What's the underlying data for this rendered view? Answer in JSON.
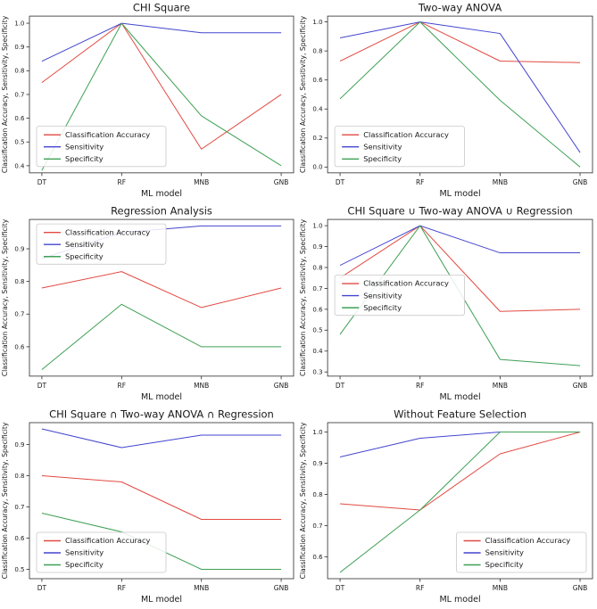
{
  "page": {
    "background": "#ffffff"
  },
  "shared": {
    "xlabel": "ML model",
    "ylabel": "Classification Accuracy, Sensitivity, Specificity",
    "categories": [
      "DT",
      "RF",
      "MNB",
      "GNB"
    ],
    "legend_labels": [
      "Classification Accuracy",
      "Sensitivity",
      "Specificity"
    ],
    "colors": {
      "accuracy": "#e24a42",
      "sensitivity": "#4345cf",
      "specificity": "#3fa055",
      "axis": "#2b2b2b",
      "legend_border": "#c9c9c9"
    }
  },
  "chart_data": [
    {
      "type": "line",
      "title": "CHI Square",
      "xlabel": "ML model",
      "ylabel": "Classification Accuracy, Sensitivity, Specificity",
      "categories": [
        "DT",
        "RF",
        "MNB",
        "GNB"
      ],
      "ylim": [
        0.37,
        1.03
      ],
      "yticks": [
        0.4,
        0.5,
        0.6,
        0.7,
        0.8,
        0.9,
        1.0
      ],
      "legend_position": "lower-left",
      "series": [
        {
          "name": "Classification Accuracy",
          "color": "#e24a42",
          "values": [
            0.75,
            1.0,
            0.47,
            0.7
          ]
        },
        {
          "name": "Sensitivity",
          "color": "#4345cf",
          "values": [
            0.84,
            1.0,
            0.96,
            0.96
          ]
        },
        {
          "name": "Specificity",
          "color": "#3fa055",
          "values": [
            0.38,
            1.0,
            0.61,
            0.4
          ]
        }
      ]
    },
    {
      "type": "line",
      "title": "Two-way ANOVA",
      "xlabel": "ML model",
      "ylabel": "Classification Accuracy, Sensitivity, Specificity",
      "categories": [
        "DT",
        "RF",
        "MNB",
        "GNB"
      ],
      "ylim": [
        -0.04,
        1.04
      ],
      "yticks": [
        0.0,
        0.2,
        0.4,
        0.6,
        0.8,
        1.0
      ],
      "legend_position": "lower-left",
      "series": [
        {
          "name": "Classification Accuracy",
          "color": "#e24a42",
          "values": [
            0.73,
            1.0,
            0.73,
            0.72
          ]
        },
        {
          "name": "Sensitivity",
          "color": "#4345cf",
          "values": [
            0.89,
            1.0,
            0.92,
            0.1
          ]
        },
        {
          "name": "Specificity",
          "color": "#3fa055",
          "values": [
            0.47,
            1.0,
            0.46,
            0.0
          ]
        }
      ]
    },
    {
      "type": "line",
      "title": "Regression Analysis",
      "xlabel": "ML model",
      "ylabel": "Classification Accuracy, Sensitivity, Specificity",
      "categories": [
        "DT",
        "RF",
        "MNB",
        "GNB"
      ],
      "ylim": [
        0.51,
        0.99
      ],
      "yticks": [
        0.6,
        0.7,
        0.8,
        0.9
      ],
      "legend_position": "upper-left",
      "series": [
        {
          "name": "Classification Accuracy",
          "color": "#e24a42",
          "values": [
            0.78,
            0.83,
            0.72,
            0.78
          ]
        },
        {
          "name": "Sensitivity",
          "color": "#4345cf",
          "values": [
            0.87,
            0.95,
            0.97,
            0.97
          ]
        },
        {
          "name": "Specificity",
          "color": "#3fa055",
          "values": [
            0.53,
            0.73,
            0.6,
            0.6
          ]
        }
      ]
    },
    {
      "type": "line",
      "title": "CHI Square ∪ Two-way ANOVA ∪ Regression",
      "xlabel": "ML model",
      "ylabel": "Classification Accuracy, Sensitivity, Specificity",
      "categories": [
        "DT",
        "RF",
        "MNB",
        "GNB"
      ],
      "ylim": [
        0.28,
        1.03
      ],
      "yticks": [
        0.3,
        0.4,
        0.5,
        0.6,
        0.7,
        0.8,
        0.9,
        1.0
      ],
      "legend_position": "center-left",
      "series": [
        {
          "name": "Classification Accuracy",
          "color": "#e24a42",
          "values": [
            0.75,
            1.0,
            0.59,
            0.6
          ]
        },
        {
          "name": "Sensitivity",
          "color": "#4345cf",
          "values": [
            0.81,
            1.0,
            0.87,
            0.87
          ]
        },
        {
          "name": "Specificity",
          "color": "#3fa055",
          "values": [
            0.48,
            1.0,
            0.36,
            0.33
          ]
        }
      ]
    },
    {
      "type": "line",
      "title": "CHI Square ∩ Two-way ANOVA ∩ Regression",
      "xlabel": "ML model",
      "ylabel": "Classification Accuracy, Sensitivity, Specificity",
      "categories": [
        "DT",
        "RF",
        "MNB",
        "GNB"
      ],
      "ylim": [
        0.47,
        0.97
      ],
      "yticks": [
        0.5,
        0.6,
        0.7,
        0.8,
        0.9
      ],
      "legend_position": "lower-left",
      "series": [
        {
          "name": "Classification Accuracy",
          "color": "#e24a42",
          "values": [
            0.8,
            0.78,
            0.66,
            0.66
          ]
        },
        {
          "name": "Sensitivity",
          "color": "#4345cf",
          "values": [
            0.95,
            0.89,
            0.93,
            0.93
          ]
        },
        {
          "name": "Specificity",
          "color": "#3fa055",
          "values": [
            0.68,
            0.62,
            0.5,
            0.5
          ]
        }
      ]
    },
    {
      "type": "line",
      "title": "Without Feature Selection",
      "xlabel": "ML model",
      "ylabel": "Classification Accuracy, Sensitivity, Specificity",
      "categories": [
        "DT",
        "RF",
        "MNB",
        "GNB"
      ],
      "ylim": [
        0.53,
        1.03
      ],
      "yticks": [
        0.6,
        0.7,
        0.8,
        0.9,
        1.0
      ],
      "legend_position": "lower-right",
      "series": [
        {
          "name": "Classification Accuracy",
          "color": "#e24a42",
          "values": [
            0.77,
            0.75,
            0.93,
            1.0
          ]
        },
        {
          "name": "Sensitivity",
          "color": "#4345cf",
          "values": [
            0.92,
            0.98,
            1.0,
            1.0
          ]
        },
        {
          "name": "Specificity",
          "color": "#3fa055",
          "values": [
            0.55,
            0.75,
            1.0,
            1.0
          ]
        }
      ]
    }
  ]
}
